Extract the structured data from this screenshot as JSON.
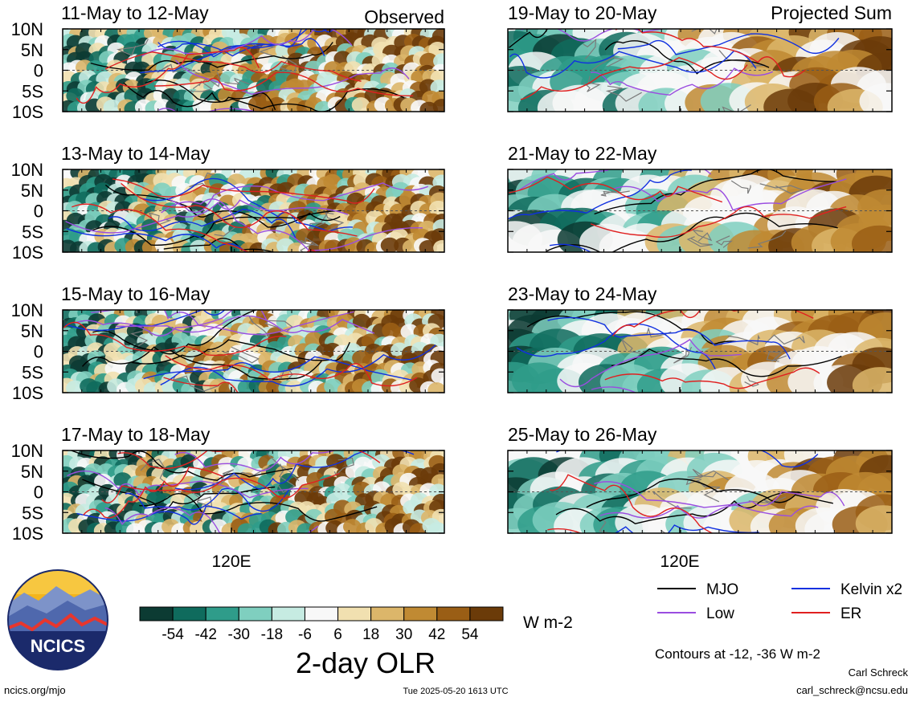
{
  "header": {
    "observed_label": "Observed",
    "projected_label": "Projected Sum"
  },
  "panels": {
    "left": [
      {
        "date_range": "11-May to 12-May"
      },
      {
        "date_range": "13-May to 14-May"
      },
      {
        "date_range": "15-May to 16-May"
      },
      {
        "date_range": "17-May to 18-May"
      }
    ],
    "right": [
      {
        "date_range": "19-May to 20-May"
      },
      {
        "date_range": "21-May to 22-May"
      },
      {
        "date_range": "23-May to 24-May"
      },
      {
        "date_range": "25-May to 26-May"
      }
    ]
  },
  "axes": {
    "lat_ticks": [
      "10N",
      "5N",
      "0",
      "5S",
      "10S"
    ],
    "lon_tick": "120E"
  },
  "colorbar": {
    "ticks": [
      "-54",
      "-42",
      "-30",
      "-18",
      "-6",
      "6",
      "18",
      "30",
      "42",
      "54"
    ],
    "units": "W m-2",
    "title": "2-day OLR",
    "colors": [
      "#0c3b33",
      "#0f6b5d",
      "#2f9c8a",
      "#7fcfbf",
      "#c6ebe2",
      "#f8f8f8",
      "#f1e0b0",
      "#dcb66a",
      "#c08a33",
      "#9a5e15",
      "#6b3b09"
    ]
  },
  "legend": {
    "items": [
      {
        "label": "MJO",
        "color": "#000000"
      },
      {
        "label": "Kelvin x2",
        "color": "#1030e0"
      },
      {
        "label": "Low",
        "color": "#9a4de0"
      },
      {
        "label": "ER",
        "color": "#e02020"
      }
    ],
    "contours_note": "Contours at -12, -36 W m-2"
  },
  "footer": {
    "logo_text": "NCICS",
    "left_url": "ncics.org/mjo",
    "timestamp": "Tue 2025-05-20 1613 UTC",
    "author": "Carl Schreck",
    "email": "carl_schreck@ncsu.edu"
  },
  "chart_data": {
    "type": "heatmap",
    "title": "2-day OLR",
    "units": "W m-2",
    "y_ticks": [
      "10N",
      "5N",
      "0",
      "5S",
      "10S"
    ],
    "x_ticks": [
      "120E"
    ],
    "panels": [
      "11-May to 12-May",
      "13-May to 14-May",
      "15-May to 16-May",
      "17-May to 18-May",
      "19-May to 20-May",
      "21-May to 22-May",
      "23-May to 24-May",
      "25-May to 26-May"
    ],
    "levels": [
      -54,
      -42,
      -30,
      -18,
      -6,
      6,
      18,
      30,
      42,
      54
    ],
    "contour_levels": [
      -12,
      -36
    ],
    "series": [
      {
        "name": "MJO",
        "color": "#000000"
      },
      {
        "name": "Kelvin x2",
        "color": "#1030e0"
      },
      {
        "name": "Low",
        "color": "#9a4de0"
      },
      {
        "name": "ER",
        "color": "#e02020"
      }
    ]
  }
}
